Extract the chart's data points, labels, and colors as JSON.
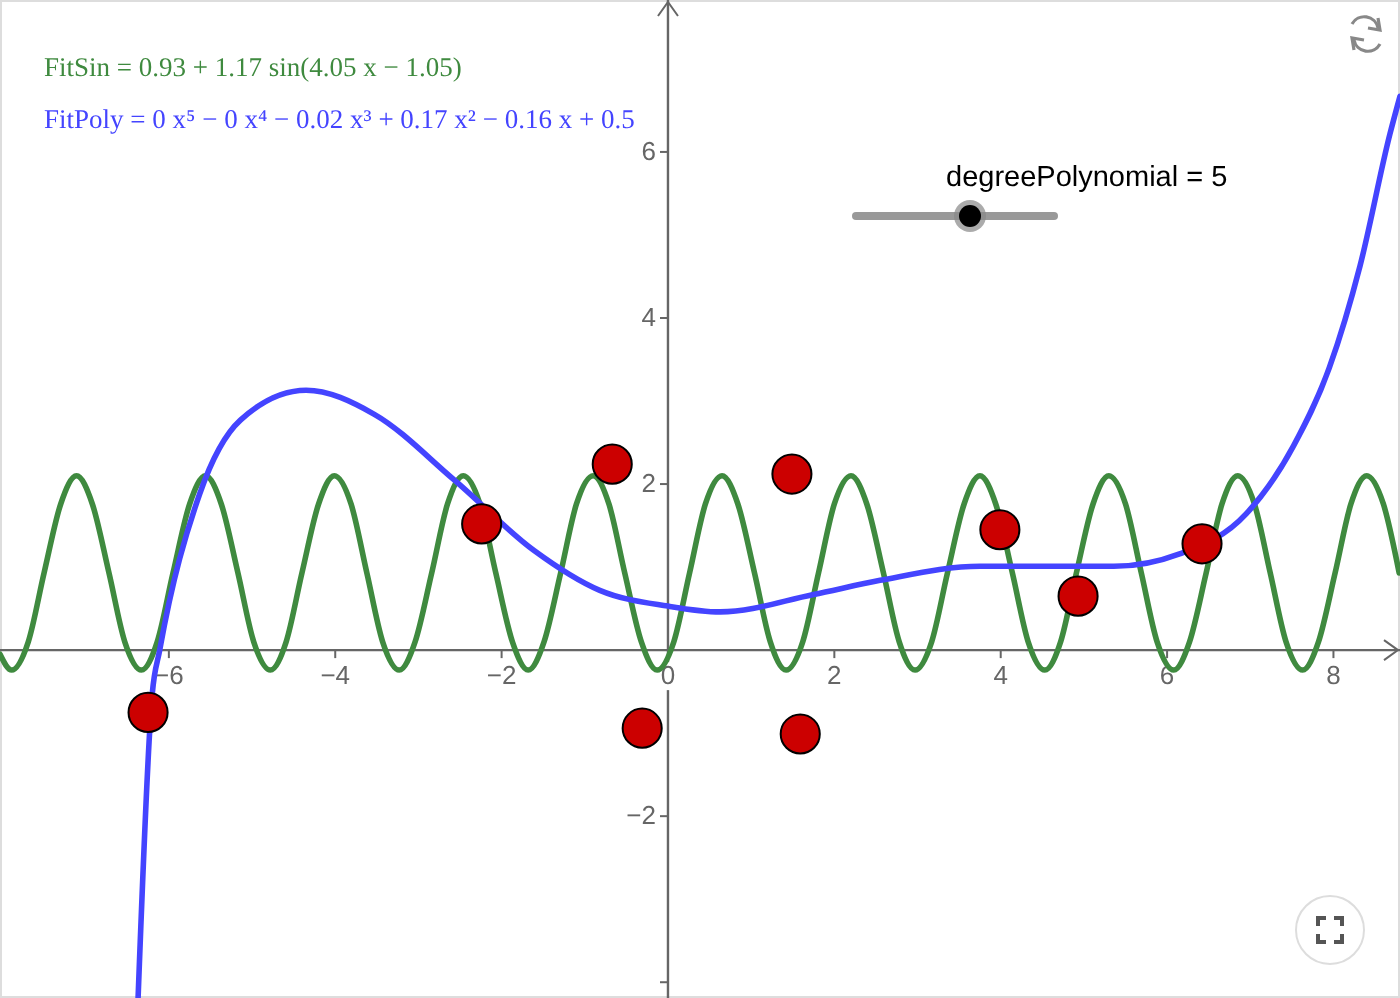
{
  "chart_data": {
    "type": "line",
    "xlim": [
      -8.03,
      8.8
    ],
    "ylim": [
      -4.19,
      7.83
    ],
    "xticks": [
      -6,
      -4,
      -2,
      0,
      2,
      4,
      6,
      8
    ],
    "yticks": [
      -2,
      2,
      4,
      6,
      {
        "value": -4,
        "label": null
      }
    ],
    "grid": false,
    "legend": "top left",
    "line_style": "solid",
    "marker": "none",
    "annotations": [
      "degreePolynomial = 5"
    ],
    "series": [
      {
        "name": "FitSin = 0.93 + 1.17 sin(4.05 x − 1.05)",
        "color": "#3f8a3f",
        "x": [
          -8.03,
          -7.89,
          -7.69,
          -7.5,
          -7.3,
          -7.11,
          -6.92,
          -6.72,
          -6.53,
          -6.33,
          -6.14,
          -5.95,
          -5.75,
          -5.56,
          -5.37,
          -5.17,
          -4.98,
          -4.78,
          -4.59,
          -4.4,
          -4.2,
          -4.01,
          -3.81,
          -3.62,
          -3.43,
          -3.23,
          -3.04,
          -2.84,
          -2.65,
          -2.46,
          -2.26,
          -2.07,
          -1.87,
          -1.68,
          -1.49,
          -1.29,
          -1.1,
          -0.9,
          -0.71,
          -0.52,
          -0.32,
          -0.13,
          0.07,
          0.26,
          0.45,
          0.65,
          0.84,
          1.04,
          1.23,
          1.42,
          1.62,
          1.81,
          2.0,
          2.2,
          2.39,
          2.59,
          2.78,
          2.97,
          3.17,
          3.36,
          3.56,
          3.75,
          3.94,
          4.14,
          4.33,
          4.53,
          4.72,
          4.91,
          5.11,
          5.3,
          5.5,
          5.69,
          5.88,
          6.08,
          6.27,
          6.47,
          6.66,
          6.85,
          7.05,
          7.24,
          7.43,
          7.63,
          7.82,
          8.02,
          8.21,
          8.4,
          8.6,
          8.79
        ],
        "values": [
          -0.05,
          -0.24,
          0.1,
          0.93,
          1.76,
          2.1,
          1.76,
          0.93,
          0.1,
          -0.24,
          0.1,
          0.93,
          1.76,
          2.1,
          1.76,
          0.93,
          0.1,
          -0.24,
          0.1,
          0.93,
          1.76,
          2.1,
          1.76,
          0.93,
          0.1,
          -0.24,
          0.1,
          0.93,
          1.76,
          2.1,
          1.76,
          0.93,
          0.1,
          -0.24,
          0.1,
          0.93,
          1.76,
          2.1,
          1.76,
          0.93,
          0.1,
          -0.24,
          0.1,
          0.93,
          1.76,
          2.1,
          1.76,
          0.93,
          0.1,
          -0.24,
          0.1,
          0.93,
          1.76,
          2.1,
          1.76,
          0.93,
          0.1,
          -0.24,
          0.1,
          0.93,
          1.76,
          2.1,
          1.76,
          0.93,
          0.1,
          -0.24,
          0.1,
          0.93,
          1.76,
          2.1,
          1.76,
          0.93,
          0.1,
          -0.24,
          0.1,
          0.93,
          1.76,
          2.1,
          1.76,
          0.93,
          0.1,
          -0.24,
          0.1,
          0.93,
          1.76,
          2.1,
          1.76,
          0.93
        ]
      },
      {
        "name": "FitPoly = 0 x⁵ − 0 x⁴ − 0.02 x³ + 0.17 x² − 0.16 x + 0.5",
        "color": "#4444ff",
        "x": [
          -6.37,
          -6.2,
          -6.11,
          -5.63,
          -5.14,
          -4.35,
          -3.53,
          -2.57,
          -1.61,
          -0.82,
          0,
          0.63,
          1.75,
          2.55,
          3.75,
          5.36,
          6.15,
          6.95,
          7.52,
          7.95,
          8.32,
          8.68,
          8.8
        ],
        "values": [
          -4.19,
          -0.53,
          0,
          1.88,
          2.77,
          3.13,
          2.84,
          2.05,
          1.2,
          0.72,
          0.53,
          0.46,
          0.67,
          0.84,
          1.01,
          1.01,
          1.16,
          1.64,
          2.46,
          3.4,
          4.63,
          6.22,
          6.67
        ]
      },
      {
        "type": "scatter",
        "marker": "circle",
        "color": "#cc0000",
        "x": [
          -6.25,
          -2.24,
          -0.67,
          -0.31,
          1.49,
          1.59,
          3.99,
          4.93,
          6.42
        ],
        "values": [
          -0.75,
          1.52,
          2.24,
          -0.94,
          2.12,
          -1.01,
          1.45,
          0.65,
          1.28
        ]
      }
    ]
  }
}
